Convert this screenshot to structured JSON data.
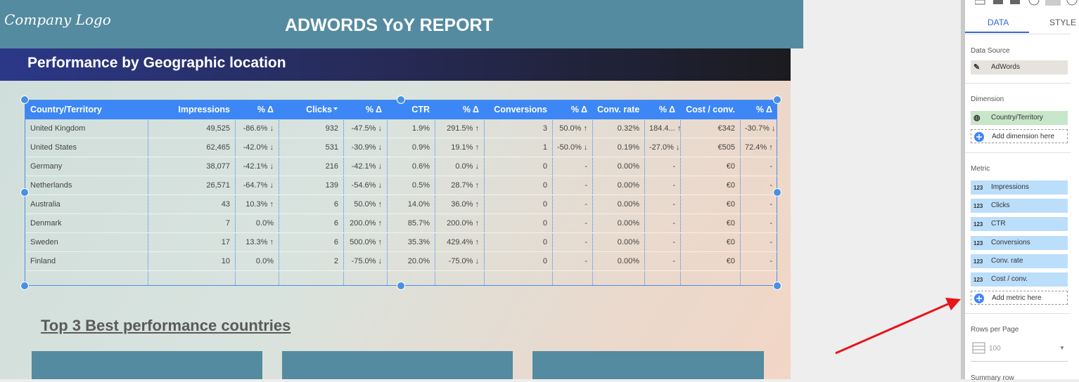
{
  "header": {
    "logo": "Company Logo",
    "title": "ADWORDS YoY REPORT"
  },
  "section_title": "Performance by Geographic location",
  "table": {
    "columns": [
      "Country/Territory",
      "Impressions",
      "% Δ",
      "Clicks",
      "% Δ",
      "CTR",
      "% Δ",
      "Conversions",
      "% Δ",
      "Conv. rate",
      "% Δ",
      "Cost / conv.",
      "% Δ"
    ],
    "rows": [
      [
        "United Kingdom",
        "49,525",
        "-86.6% ↓",
        "932",
        "-47.5% ↓",
        "1.9%",
        "291.5% ↑",
        "3",
        "50.0% ↑",
        "0.32%",
        "184.4... ↑",
        "€342",
        "-30.7% ↓"
      ],
      [
        "United States",
        "62,465",
        "-42.0% ↓",
        "531",
        "-30.9% ↓",
        "0.9%",
        "19.1% ↑",
        "1",
        "-50.0% ↓",
        "0.19%",
        "-27.0% ↓",
        "€505",
        "72.4% ↑"
      ],
      [
        "Germany",
        "38,077",
        "-42.1% ↓",
        "216",
        "-42.1% ↓",
        "0.6%",
        "0.0% ↓",
        "0",
        "-",
        "0.00%",
        "-",
        "€0",
        "-"
      ],
      [
        "Netherlands",
        "26,571",
        "-64.7% ↓",
        "139",
        "-54.6% ↓",
        "0.5%",
        "28.7% ↑",
        "0",
        "-",
        "0.00%",
        "-",
        "€0",
        "-"
      ],
      [
        "Australia",
        "43",
        "10.3% ↑",
        "6",
        "50.0% ↑",
        "14.0%",
        "36.0% ↑",
        "0",
        "-",
        "0.00%",
        "-",
        "€0",
        "-"
      ],
      [
        "Denmark",
        "7",
        "0.0%",
        "6",
        "200.0% ↑",
        "85.7%",
        "200.0% ↑",
        "0",
        "-",
        "0.00%",
        "-",
        "€0",
        "-"
      ],
      [
        "Sweden",
        "17",
        "13.3% ↑",
        "6",
        "500.0% ↑",
        "35.3%",
        "429.4% ↑",
        "0",
        "-",
        "0.00%",
        "-",
        "€0",
        "-"
      ],
      [
        "Finland",
        "10",
        "0.0%",
        "2",
        "-75.0% ↓",
        "20.0%",
        "-75.0% ↓",
        "0",
        "-",
        "0.00%",
        "-",
        "€0",
        "-"
      ]
    ]
  },
  "subtitle": "Top 3 Best performance countries",
  "panel": {
    "tabs": [
      "DATA",
      "STYLE"
    ],
    "data_source": {
      "label": "Data Source",
      "value": "AdWords"
    },
    "dimension": {
      "label": "Dimension",
      "value": "Country/Territory",
      "add": "Add dimension here"
    },
    "metric": {
      "label": "Metric",
      "icon": "123",
      "items": [
        "Impressions",
        "Clicks",
        "CTR",
        "Conversions",
        "Conv. rate",
        "Cost / conv."
      ],
      "add": "Add metric here"
    },
    "rows_per_page": {
      "label": "Rows per Page",
      "value": "100"
    },
    "summary_row": "Summary row"
  }
}
